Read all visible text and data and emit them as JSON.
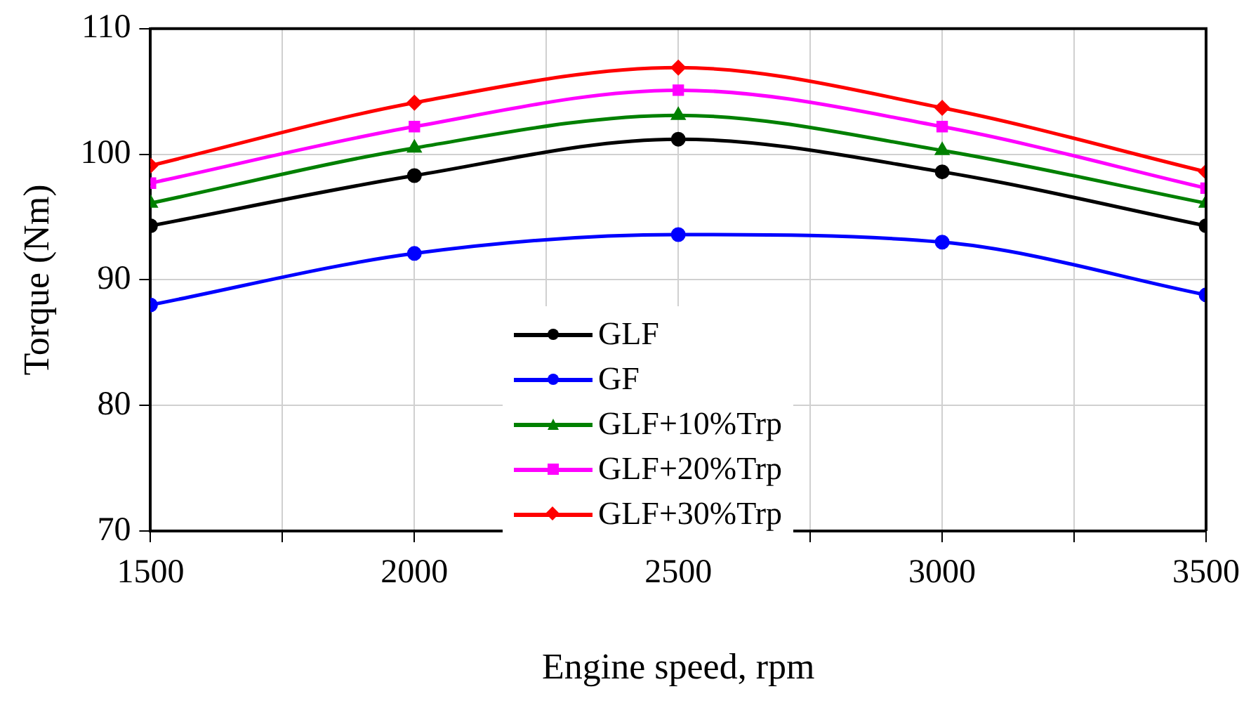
{
  "chart_data": {
    "type": "line",
    "xlabel": "Engine speed, rpm",
    "ylabel": "Torque (Nm)",
    "x": [
      1500,
      2000,
      2500,
      3000,
      3500
    ],
    "xlim": [
      1500,
      3500
    ],
    "xticks": [
      1500,
      {
        "value": 1750,
        "label": null
      },
      2000,
      {
        "value": 2250,
        "label": null
      },
      2500,
      {
        "value": 2750,
        "label": null
      },
      3000,
      {
        "value": 3250,
        "label": null
      },
      3500
    ],
    "ylim": [
      70,
      110
    ],
    "yticks": [
      70,
      80,
      90,
      100,
      110
    ],
    "grid": true,
    "legend": "bottom",
    "line_style": "solid",
    "series": [
      {
        "name": "GLF",
        "color": "#000000",
        "marker": "circle",
        "values": [
          94.3,
          98.3,
          101.2,
          98.6,
          94.3
        ]
      },
      {
        "name": "GF",
        "color": "#0000ff",
        "marker": "circle",
        "values": [
          88.0,
          92.1,
          93.6,
          93.0,
          88.8
        ]
      },
      {
        "name": "GLF+10%Trp",
        "color": "#008000",
        "marker": "triangle",
        "values": [
          96.1,
          100.5,
          103.1,
          100.3,
          96.1
        ]
      },
      {
        "name": "GLF+20%Trp",
        "color": "#ff00ff",
        "marker": "square",
        "values": [
          97.7,
          102.2,
          105.1,
          102.2,
          97.3
        ]
      },
      {
        "name": "GLF+30%Trp",
        "color": "#ff0000",
        "marker": "diamond",
        "values": [
          99.1,
          104.1,
          106.9,
          103.7,
          98.6
        ]
      }
    ]
  }
}
